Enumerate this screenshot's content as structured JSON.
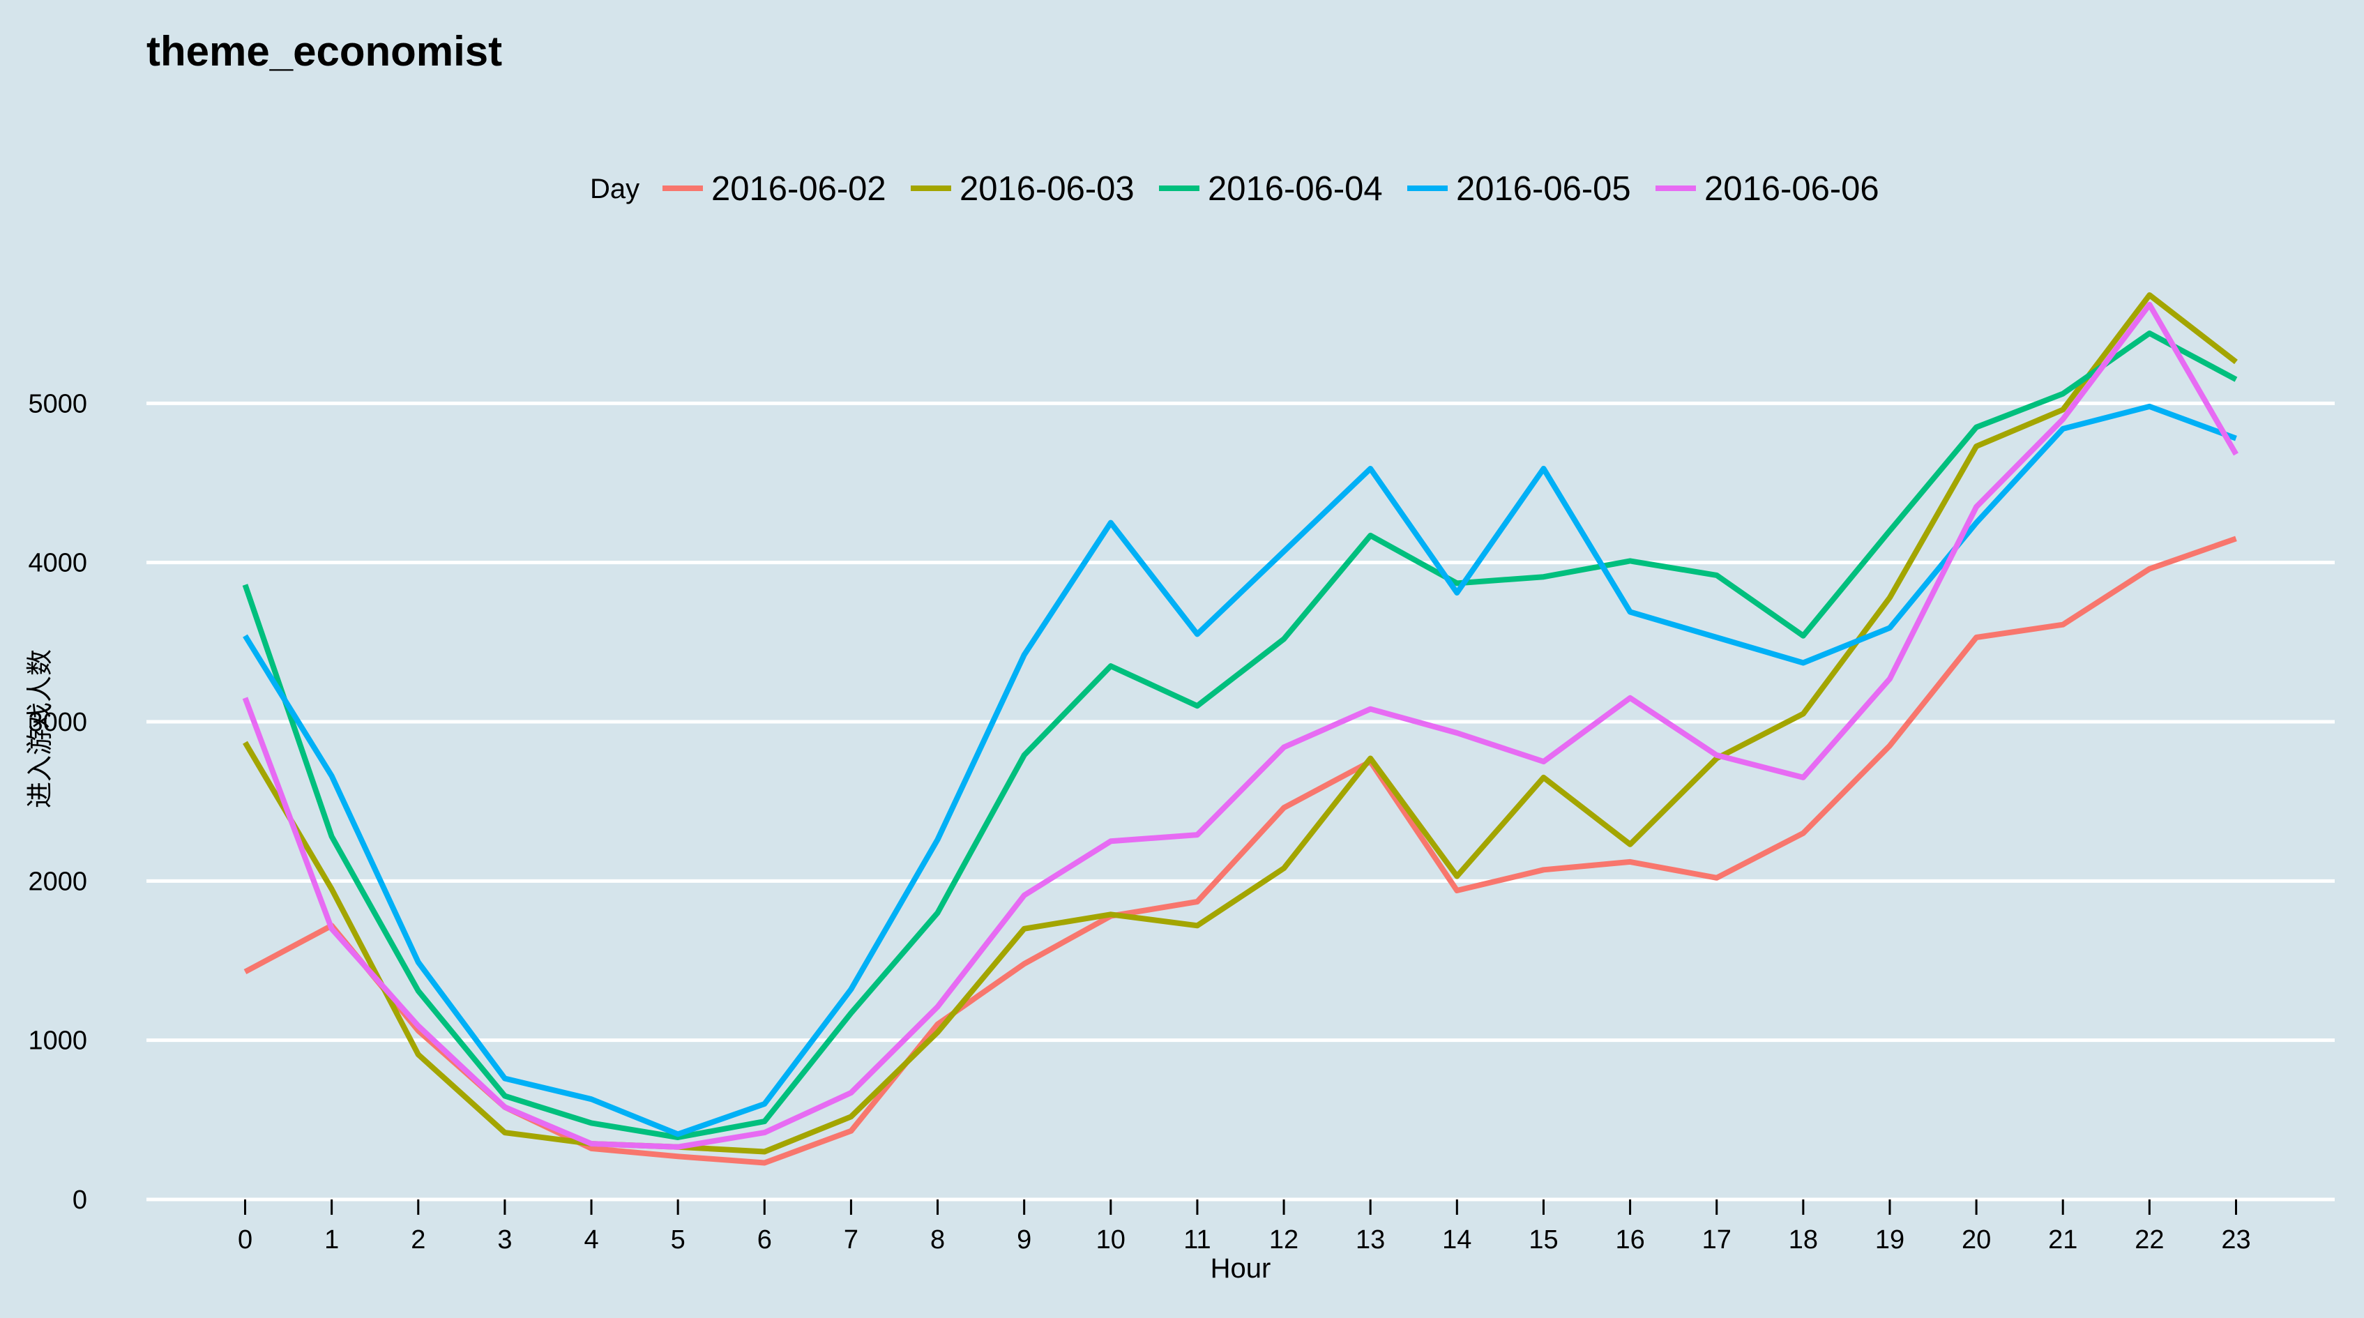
{
  "chart_data": {
    "type": "line",
    "title": "theme_economist",
    "xlabel": "Hour",
    "ylabel": "进入游戏人数",
    "legend_title": "Day",
    "legend_position": "top",
    "grid": "horizontal major lines",
    "x": [
      0,
      1,
      2,
      3,
      4,
      5,
      6,
      7,
      8,
      9,
      10,
      11,
      12,
      13,
      14,
      15,
      16,
      17,
      18,
      19,
      20,
      21,
      22,
      23
    ],
    "x_ticks": [
      "0",
      "1",
      "2",
      "3",
      "4",
      "5",
      "6",
      "7",
      "8",
      "9",
      "10",
      "11",
      "12",
      "13",
      "14",
      "15",
      "16",
      "17",
      "18",
      "19",
      "20",
      "21",
      "22",
      "23"
    ],
    "xlim": [
      -1.14,
      24.14
    ],
    "ylim": [
      0,
      6000
    ],
    "y_ticks": [
      0,
      1000,
      2000,
      3000,
      4000,
      5000
    ],
    "y_tick_labels": [
      "0",
      "1000",
      "2000",
      "3000",
      "4000",
      "5000"
    ],
    "series": [
      {
        "name": "2016-06-02",
        "color": "#F8766D",
        "values": [
          1430,
          1720,
          1060,
          580,
          320,
          270,
          230,
          430,
          1100,
          1480,
          1780,
          1870,
          2460,
          2750,
          1940,
          2070,
          2120,
          2020,
          2300,
          2850,
          3530,
          3610,
          3960,
          4150
        ]
      },
      {
        "name": "2016-06-03",
        "color": "#A3A500",
        "values": [
          2870,
          1950,
          910,
          420,
          350,
          330,
          300,
          520,
          1050,
          1700,
          1790,
          1720,
          2080,
          2770,
          2030,
          2650,
          2230,
          2770,
          3050,
          3780,
          4730,
          4960,
          5680,
          5260
        ]
      },
      {
        "name": "2016-06-04",
        "color": "#00BF7D",
        "values": [
          3860,
          2280,
          1310,
          650,
          480,
          390,
          490,
          1170,
          1800,
          2790,
          3350,
          3100,
          3520,
          4170,
          3870,
          3910,
          4010,
          3920,
          3540,
          4200,
          4850,
          5060,
          5440,
          5150
        ]
      },
      {
        "name": "2016-06-05",
        "color": "#00B0F6",
        "values": [
          3540,
          2660,
          1490,
          760,
          630,
          410,
          600,
          1320,
          2260,
          3420,
          4250,
          3550,
          4070,
          4590,
          3810,
          4590,
          3690,
          3530,
          3370,
          3590,
          4250,
          4840,
          4980,
          4780
        ]
      },
      {
        "name": "2016-06-06",
        "color": "#E76BF3",
        "values": [
          3150,
          1700,
          1090,
          580,
          350,
          330,
          420,
          670,
          1210,
          1910,
          2250,
          2290,
          2840,
          3080,
          2930,
          2750,
          3150,
          2790,
          2650,
          3270,
          4350,
          4900,
          5620,
          4680
        ]
      }
    ]
  },
  "colors": {
    "background": "#d5e4eb",
    "gridline": "#ffffff",
    "axis_line": "#ffffff"
  }
}
